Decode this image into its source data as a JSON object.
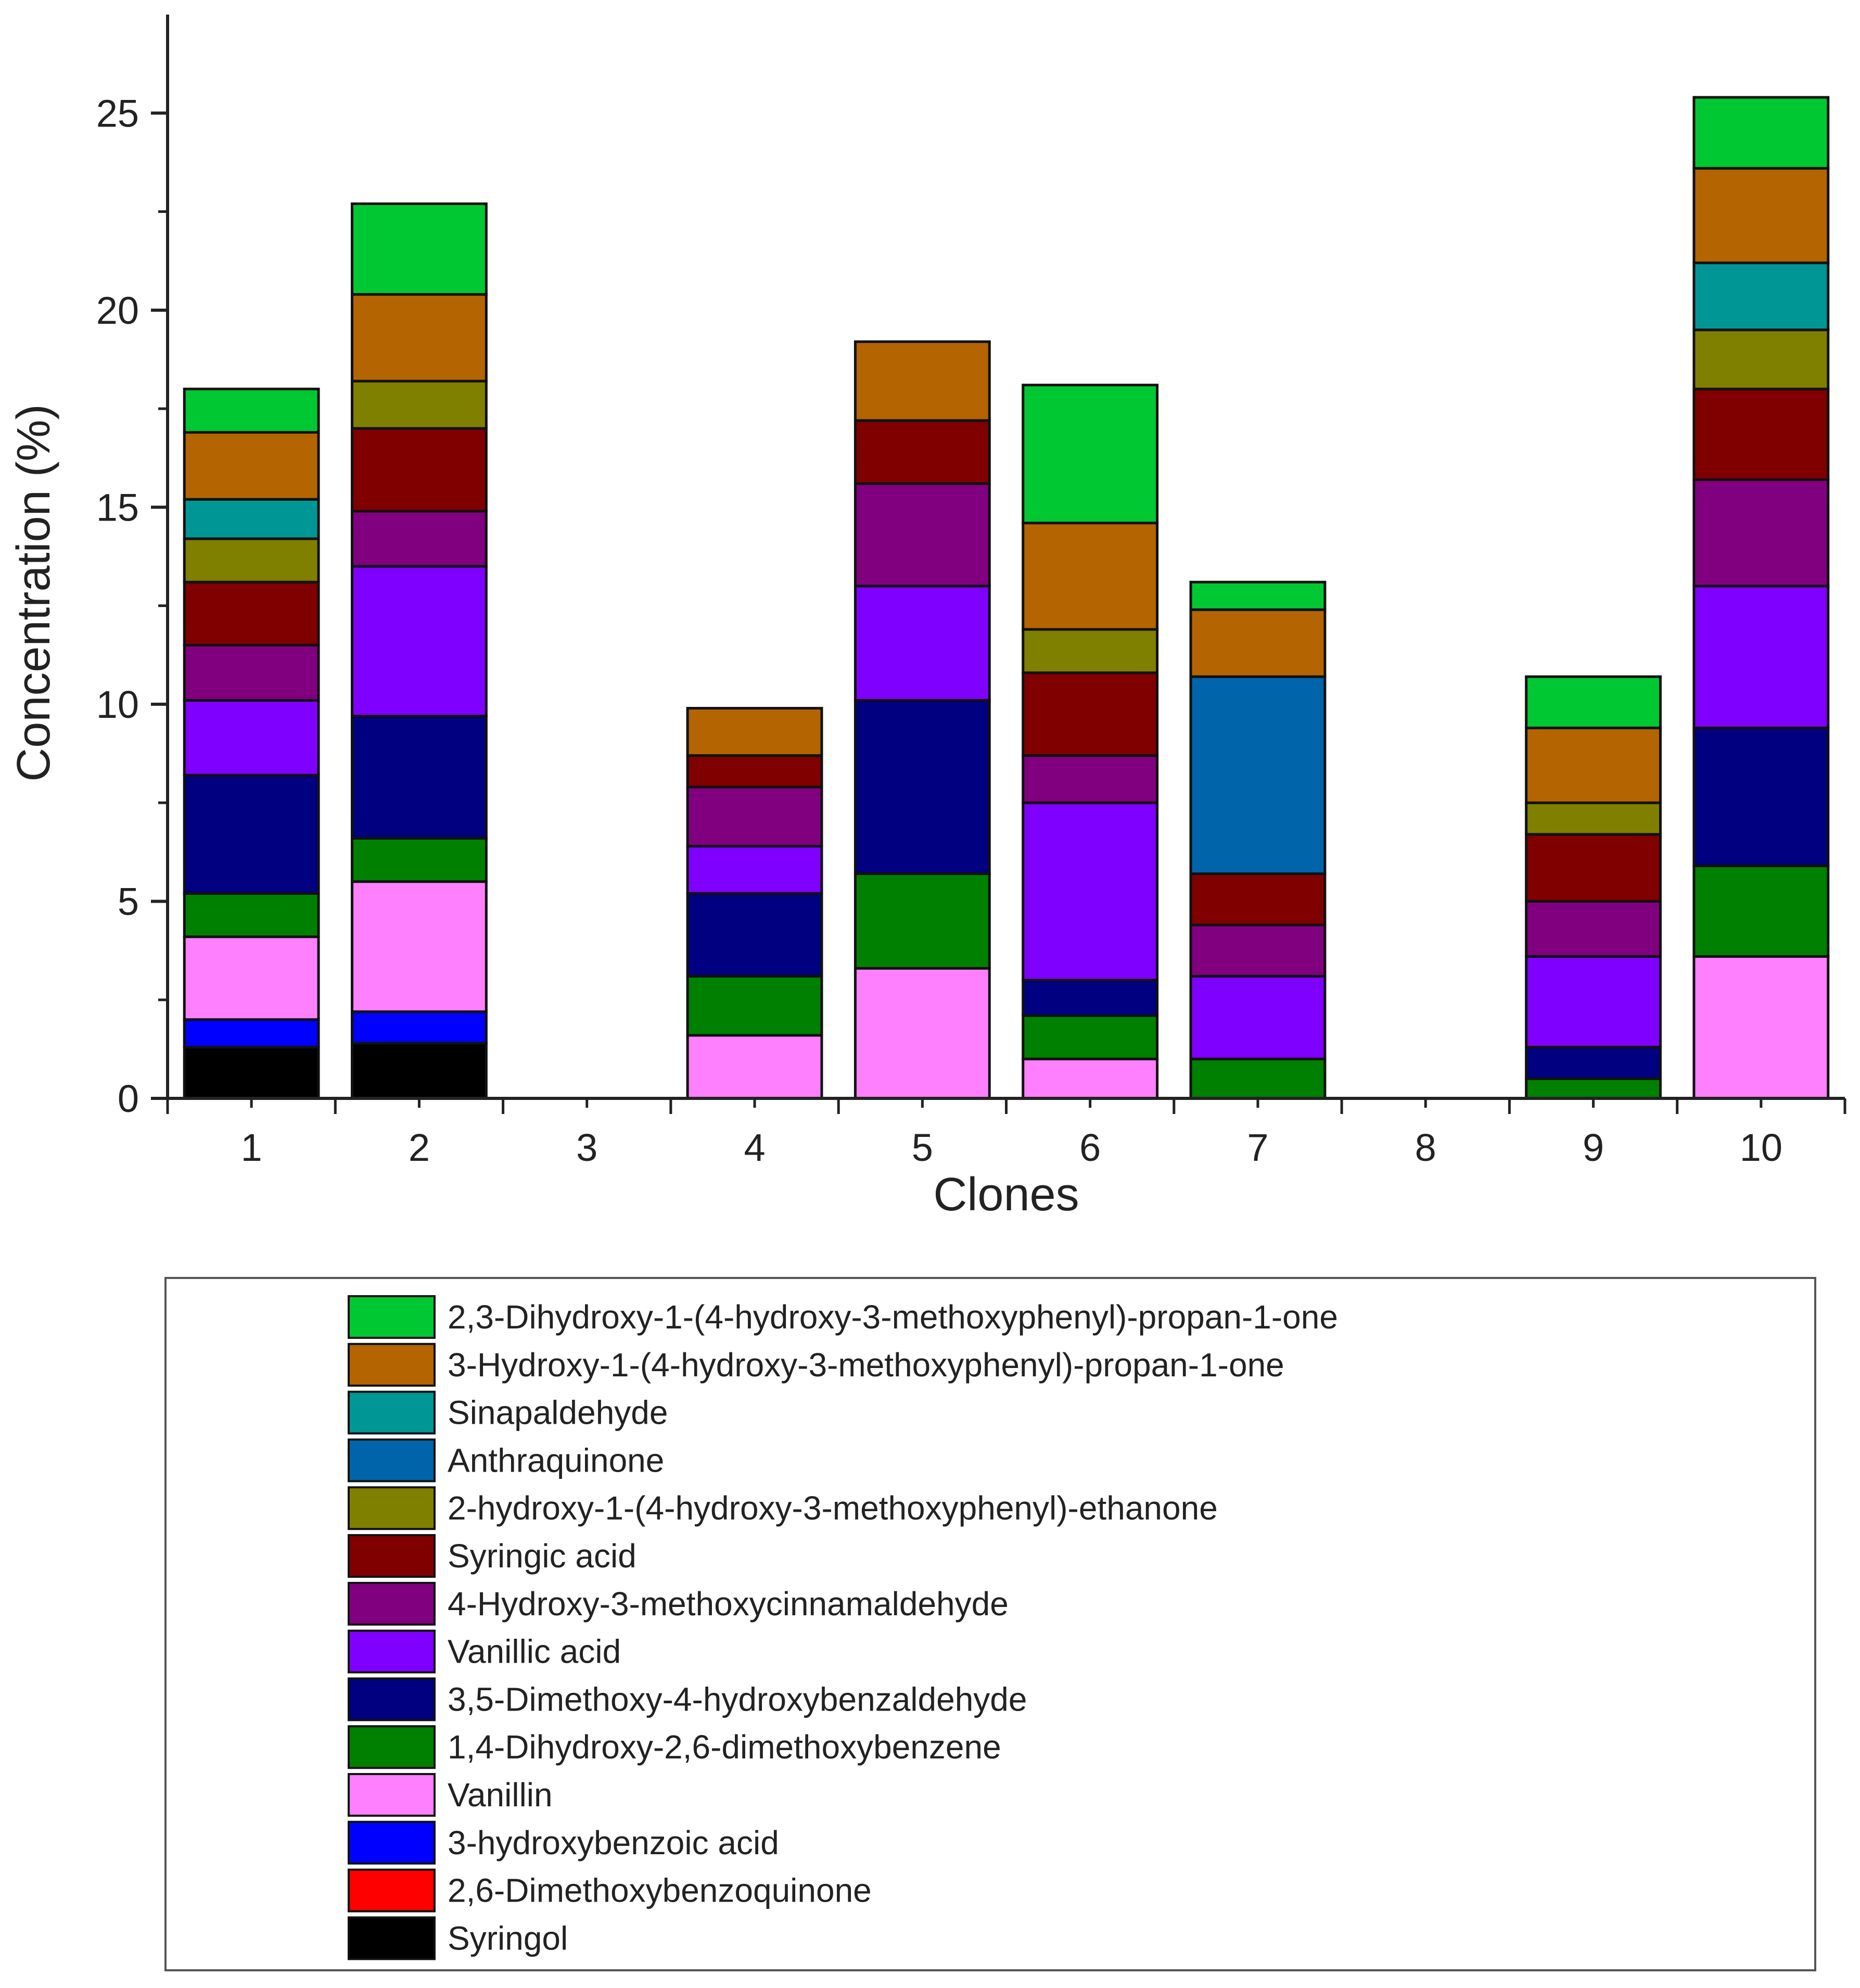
{
  "chart_data": {
    "type": "bar",
    "stacked": true,
    "xlabel": "Clones",
    "ylabel": "Concentration (%)",
    "ylim": [
      0,
      27.5
    ],
    "yticks": [
      0,
      5,
      10,
      15,
      20,
      25
    ],
    "categories": [
      "1",
      "2",
      "3",
      "4",
      "5",
      "6",
      "7",
      "8",
      "9",
      "10"
    ],
    "legend_position": "bottom",
    "series": [
      {
        "name": "Syringol",
        "color": "#000000",
        "values": [
          1.3,
          1.4,
          0,
          0,
          0,
          0,
          0,
          0,
          0,
          0
        ]
      },
      {
        "name": "2,6-Dimethoxybenzoquinone",
        "color": "#ff0000",
        "values": [
          0,
          0,
          0,
          0,
          0,
          0,
          0,
          0,
          0,
          0
        ]
      },
      {
        "name": "3-hydroxybenzoic acid",
        "color": "#0000ff",
        "values": [
          0.7,
          0.8,
          0,
          0,
          0,
          0,
          0,
          0,
          0,
          0
        ]
      },
      {
        "name": "Vanillin",
        "color": "#ff80ff",
        "values": [
          2.1,
          3.3,
          0,
          1.6,
          3.3,
          1.0,
          0,
          0,
          0,
          3.6
        ]
      },
      {
        "name": "1,4-Dihydroxy-2,6-dimethoxybenzene",
        "color": "#008000",
        "values": [
          1.1,
          1.1,
          0,
          1.5,
          2.4,
          1.1,
          1.0,
          0,
          0.5,
          2.3
        ]
      },
      {
        "name": "3,5-Dimethoxy-4-hydroxybenzaldehyde",
        "color": "#000080",
        "values": [
          3.0,
          3.1,
          0,
          2.1,
          4.4,
          0.9,
          0,
          0,
          0.8,
          3.5
        ]
      },
      {
        "name": "Vanillic acid",
        "color": "#8000ff",
        "values": [
          1.9,
          3.8,
          0,
          1.2,
          2.9,
          4.5,
          2.1,
          0,
          2.3,
          3.6
        ]
      },
      {
        "name": "4-Hydroxy-3-methoxycinnamaldehyde",
        "color": "#800080",
        "values": [
          1.4,
          1.4,
          0,
          1.5,
          2.6,
          1.2,
          1.3,
          0,
          1.4,
          2.7
        ]
      },
      {
        "name": "Syringic acid",
        "color": "#800000",
        "values": [
          1.6,
          2.1,
          0,
          0.8,
          1.6,
          2.1,
          1.3,
          0,
          1.7,
          2.3
        ]
      },
      {
        "name": "2-hydroxy-1-(4-hydroxy-3-methoxyphenyl)-ethanone",
        "color": "#808000",
        "values": [
          1.1,
          1.2,
          0,
          0,
          0,
          1.1,
          0,
          0,
          0.8,
          1.5
        ]
      },
      {
        "name": "Anthraquinone",
        "color": "#0064aa",
        "values": [
          0,
          0,
          0,
          0,
          0,
          0,
          5.0,
          0,
          0,
          0
        ]
      },
      {
        "name": "Sinapaldehyde",
        "color": "#009696",
        "values": [
          1.0,
          0,
          0,
          0,
          0,
          0,
          0,
          0,
          0,
          1.7
        ]
      },
      {
        "name": "3-Hydroxy-1-(4-hydroxy-3-methoxyphenyl)-propan-1-one",
        "color": "#b46400",
        "values": [
          1.7,
          2.2,
          0,
          1.2,
          2.0,
          2.7,
          1.7,
          0,
          1.9,
          2.4
        ]
      },
      {
        "name": "2,3-Dihydroxy-1-(4-hydroxy-3-methoxyphenyl)-propan-1-one",
        "color": "#00c832",
        "values": [
          1.1,
          2.3,
          0,
          0,
          0,
          3.5,
          0.7,
          0,
          1.3,
          1.8
        ]
      }
    ]
  }
}
